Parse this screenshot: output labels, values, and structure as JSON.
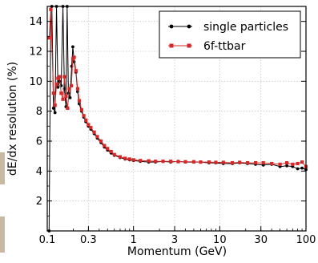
{
  "chart_data": {
    "type": "line",
    "xscale": "log",
    "xlim": [
      0.1,
      100
    ],
    "ylim": [
      0,
      15
    ],
    "grid": true,
    "legend_position": "top-right",
    "xlabel": "Momentum (GeV)",
    "ylabel": "dE/dx resolution (%)",
    "x_ticks": [
      {
        "value": 0.1,
        "label": "0.1"
      },
      {
        "value": 0.3,
        "label": "0.3"
      },
      {
        "value": 1,
        "label": "1"
      },
      {
        "value": 3,
        "label": "3"
      },
      {
        "value": 10,
        "label": "10"
      },
      {
        "value": 30,
        "label": "30"
      },
      {
        "value": 100,
        "label": "100"
      }
    ],
    "y_ticks": [
      {
        "value": 2,
        "label": "2"
      },
      {
        "value": 4,
        "label": "4"
      },
      {
        "value": 6,
        "label": "6"
      },
      {
        "value": 8,
        "label": "8"
      },
      {
        "value": 10,
        "label": "10"
      },
      {
        "value": 12,
        "label": "12"
      },
      {
        "value": 14,
        "label": "14"
      }
    ],
    "series": [
      {
        "name": "single particles",
        "color": "#000000",
        "marker": "circle",
        "points": [
          [
            0.105,
            0.0
          ],
          [
            0.11,
            14.8
          ],
          [
            0.113,
            15.0
          ],
          [
            0.118,
            8.2
          ],
          [
            0.123,
            7.9
          ],
          [
            0.128,
            15.0
          ],
          [
            0.133,
            9.6
          ],
          [
            0.139,
            10.0
          ],
          [
            0.145,
            9.7
          ],
          [
            0.152,
            15.0
          ],
          [
            0.158,
            9.5
          ],
          [
            0.165,
            8.3
          ],
          [
            0.17,
            15.0
          ],
          [
            0.176,
            9.2
          ],
          [
            0.184,
            8.9
          ],
          [
            0.192,
            11.0
          ],
          [
            0.198,
            12.3
          ],
          [
            0.205,
            11.3
          ],
          [
            0.215,
            10.6
          ],
          [
            0.225,
            9.3
          ],
          [
            0.235,
            8.5
          ],
          [
            0.25,
            8.0
          ],
          [
            0.265,
            7.6
          ],
          [
            0.28,
            7.3
          ],
          [
            0.3,
            7.0
          ],
          [
            0.32,
            6.8
          ],
          [
            0.35,
            6.5
          ],
          [
            0.38,
            6.2
          ],
          [
            0.42,
            5.9
          ],
          [
            0.46,
            5.6
          ],
          [
            0.5,
            5.4
          ],
          [
            0.55,
            5.2
          ],
          [
            0.6,
            5.05
          ],
          [
            0.7,
            4.9
          ],
          [
            0.8,
            4.8
          ],
          [
            0.9,
            4.75
          ],
          [
            1.0,
            4.7
          ],
          [
            1.2,
            4.65
          ],
          [
            1.5,
            4.6
          ],
          [
            1.8,
            4.6
          ],
          [
            2.2,
            4.65
          ],
          [
            2.7,
            4.6
          ],
          [
            3.3,
            4.65
          ],
          [
            4.0,
            4.6
          ],
          [
            5.0,
            4.6
          ],
          [
            6.0,
            4.6
          ],
          [
            7.5,
            4.55
          ],
          [
            9.0,
            4.55
          ],
          [
            11,
            4.5
          ],
          [
            14,
            4.5
          ],
          [
            17,
            4.55
          ],
          [
            21,
            4.5
          ],
          [
            26,
            4.45
          ],
          [
            32,
            4.4
          ],
          [
            40,
            4.45
          ],
          [
            50,
            4.3
          ],
          [
            60,
            4.35
          ],
          [
            70,
            4.3
          ],
          [
            80,
            4.15
          ],
          [
            90,
            4.2
          ],
          [
            100,
            4.1
          ]
        ]
      },
      {
        "name": "6f-ttbar",
        "color": "#d62828",
        "marker": "square",
        "points": [
          [
            0.105,
            12.9
          ],
          [
            0.11,
            14.8
          ],
          [
            0.118,
            9.2
          ],
          [
            0.123,
            8.4
          ],
          [
            0.128,
            9.8
          ],
          [
            0.133,
            10.2
          ],
          [
            0.139,
            10.3
          ],
          [
            0.145,
            9.2
          ],
          [
            0.152,
            8.8
          ],
          [
            0.158,
            10.3
          ],
          [
            0.165,
            9.0
          ],
          [
            0.172,
            8.2
          ],
          [
            0.18,
            9.5
          ],
          [
            0.19,
            9.7
          ],
          [
            0.198,
            11.5
          ],
          [
            0.205,
            11.6
          ],
          [
            0.215,
            10.7
          ],
          [
            0.225,
            9.5
          ],
          [
            0.235,
            8.7
          ],
          [
            0.25,
            8.1
          ],
          [
            0.265,
            7.7
          ],
          [
            0.28,
            7.4
          ],
          [
            0.3,
            7.1
          ],
          [
            0.32,
            6.9
          ],
          [
            0.35,
            6.6
          ],
          [
            0.38,
            6.3
          ],
          [
            0.42,
            6.0
          ],
          [
            0.46,
            5.7
          ],
          [
            0.5,
            5.5
          ],
          [
            0.55,
            5.3
          ],
          [
            0.6,
            5.1
          ],
          [
            0.7,
            4.95
          ],
          [
            0.8,
            4.85
          ],
          [
            0.9,
            4.8
          ],
          [
            1.0,
            4.75
          ],
          [
            1.2,
            4.7
          ],
          [
            1.5,
            4.68
          ],
          [
            1.8,
            4.65
          ],
          [
            2.2,
            4.65
          ],
          [
            2.7,
            4.65
          ],
          [
            3.3,
            4.63
          ],
          [
            4.0,
            4.62
          ],
          [
            5.0,
            4.62
          ],
          [
            6.0,
            4.6
          ],
          [
            7.5,
            4.6
          ],
          [
            9.0,
            4.58
          ],
          [
            11,
            4.58
          ],
          [
            14,
            4.55
          ],
          [
            17,
            4.58
          ],
          [
            21,
            4.55
          ],
          [
            26,
            4.55
          ],
          [
            32,
            4.55
          ],
          [
            40,
            4.5
          ],
          [
            50,
            4.45
          ],
          [
            60,
            4.55
          ],
          [
            70,
            4.45
          ],
          [
            80,
            4.5
          ],
          [
            90,
            4.6
          ],
          [
            100,
            4.3
          ]
        ]
      }
    ]
  }
}
